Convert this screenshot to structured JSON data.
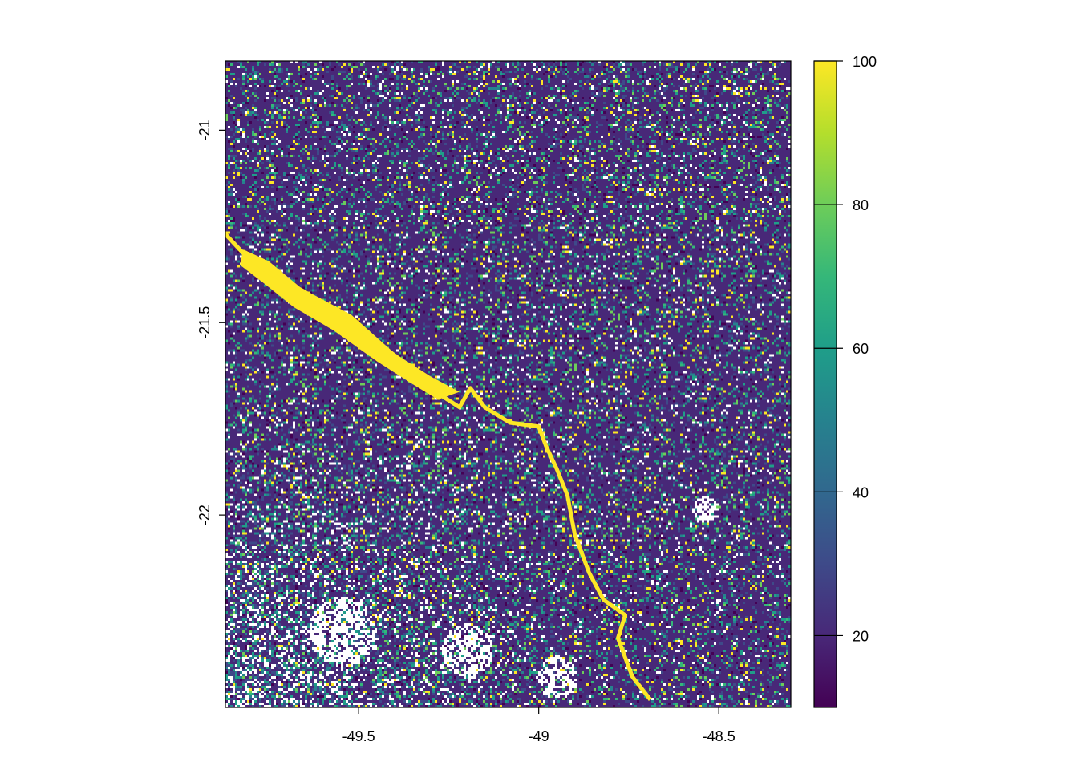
{
  "map": {
    "x_axis": {
      "ticks": [
        -49.5,
        -49,
        -48.5
      ],
      "tick_labels": [
        "-49.5",
        "-49",
        "-48.5"
      ],
      "range": [
        -49.87,
        -48.3
      ]
    },
    "y_axis": {
      "ticks": [
        -21,
        -21.5,
        -22
      ],
      "tick_labels": [
        "-21",
        "-21.5",
        "-22"
      ],
      "range": [
        -22.5,
        -20.82
      ]
    },
    "colorbar": {
      "palette": "viridis",
      "range": [
        10,
        100
      ],
      "ticks": [
        20,
        40,
        60,
        80,
        100
      ],
      "tick_labels": [
        "20",
        "40",
        "60",
        "80",
        "100"
      ],
      "colors": [
        "#440154",
        "#482878",
        "#3E4A89",
        "#31688E",
        "#26828E",
        "#1F9E89",
        "#35B779",
        "#6DCD59",
        "#B4DE2C",
        "#FDE725"
      ]
    },
    "river_path": [
      [
        -49.87,
        -21.27
      ],
      [
        -49.82,
        -21.32
      ],
      [
        -49.75,
        -21.37
      ],
      [
        -49.65,
        -21.42
      ],
      [
        -49.55,
        -21.48
      ],
      [
        -49.45,
        -21.55
      ],
      [
        -49.35,
        -21.62
      ],
      [
        -49.27,
        -21.69
      ],
      [
        -49.22,
        -21.72
      ],
      [
        -49.19,
        -21.67
      ],
      [
        -49.15,
        -21.72
      ],
      [
        -49.08,
        -21.76
      ],
      [
        -49.0,
        -21.77
      ],
      [
        -48.98,
        -21.82
      ],
      [
        -48.95,
        -21.88
      ],
      [
        -48.92,
        -21.95
      ],
      [
        -48.9,
        -22.05
      ],
      [
        -48.86,
        -22.15
      ],
      [
        -48.82,
        -22.22
      ],
      [
        -48.76,
        -22.26
      ],
      [
        -48.78,
        -22.32
      ],
      [
        -48.74,
        -22.42
      ],
      [
        -48.69,
        -22.48
      ]
    ],
    "reservoir_lake": [
      [
        -49.82,
        -21.31
      ],
      [
        -49.75,
        -21.34
      ],
      [
        -49.66,
        -21.41
      ],
      [
        -49.52,
        -21.48
      ],
      [
        -49.4,
        -21.58
      ],
      [
        -49.3,
        -21.64
      ],
      [
        -49.22,
        -21.68
      ],
      [
        -49.28,
        -21.7
      ],
      [
        -49.35,
        -21.66
      ],
      [
        -49.45,
        -21.6
      ],
      [
        -49.57,
        -21.52
      ],
      [
        -49.68,
        -21.46
      ],
      [
        -49.76,
        -21.4
      ],
      [
        -49.83,
        -21.35
      ]
    ],
    "no_data_areas": [
      {
        "lon": -48.95,
        "lat": -22.42,
        "r": 0.055
      },
      {
        "lon": -48.54,
        "lat": -21.98,
        "r": 0.035
      },
      {
        "lon": -49.2,
        "lat": -22.35,
        "r": 0.07
      },
      {
        "lon": -49.55,
        "lat": -22.3,
        "r": 0.09
      }
    ]
  }
}
